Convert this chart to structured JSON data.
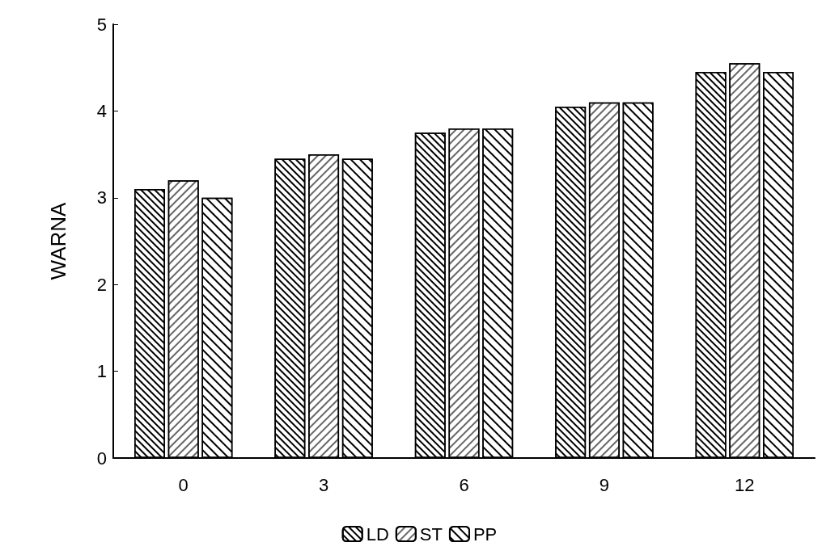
{
  "chart_data": {
    "type": "bar",
    "ylabel": "WARNA",
    "categories": [
      "0",
      "3",
      "6",
      "9",
      "12"
    ],
    "series": [
      {
        "name": "LD",
        "color": "#ffffff",
        "values": [
          3.1,
          3.45,
          3.75,
          4.05,
          4.45
        ]
      },
      {
        "name": "ST",
        "color": "#ffffff",
        "values": [
          3.2,
          3.5,
          3.8,
          4.1,
          4.55
        ]
      },
      {
        "name": "PP",
        "color": "#ffffff",
        "values": [
          3.0,
          3.45,
          3.8,
          4.1,
          4.45
        ]
      }
    ],
    "ylim": [
      0,
      5
    ],
    "yticks": [
      0,
      1,
      2,
      3,
      4,
      5
    ],
    "grid": false,
    "legend": "bottom"
  }
}
